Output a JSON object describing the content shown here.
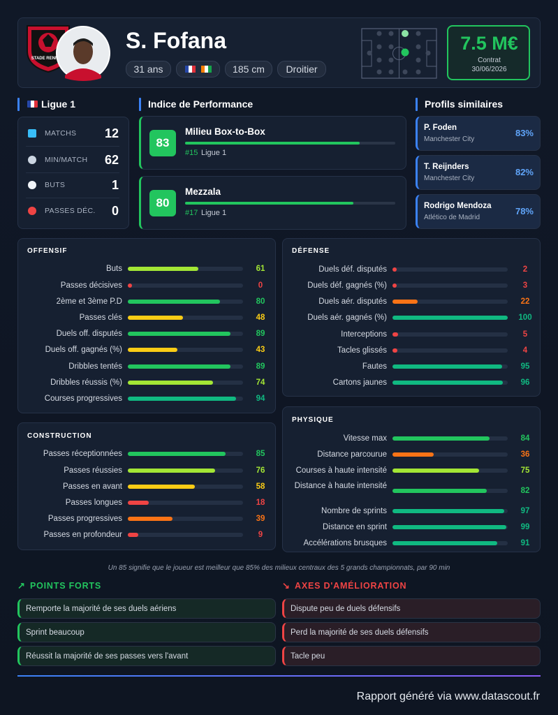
{
  "header": {
    "club": "STADE RENNAIS",
    "name": "S. Fofana",
    "age": "31 ans",
    "height": "185 cm",
    "foot": "Droitier",
    "market_value": "7.5 M€",
    "contract_label": "Contrat",
    "contract_end": "30/06/2026"
  },
  "league": {
    "title": "Ligue 1",
    "stats": [
      {
        "label": "MATCHS",
        "value": 12
      },
      {
        "label": "MIN/MATCH",
        "value": 62
      },
      {
        "label": "BUTS",
        "value": 1
      },
      {
        "label": "PASSES DÉC.",
        "value": 0
      }
    ]
  },
  "performance": {
    "title": "Indice de Performance",
    "roles": [
      {
        "score": 83,
        "name": "Milieu Box-to-Box",
        "rank": "#15",
        "league": "Ligue 1"
      },
      {
        "score": 80,
        "name": "Mezzala",
        "rank": "#17",
        "league": "Ligue 1"
      }
    ]
  },
  "similar": {
    "title": "Profils similaires",
    "players": [
      {
        "name": "P. Foden",
        "club": "Manchester City",
        "similarity": "83%"
      },
      {
        "name": "T. Reijnders",
        "club": "Manchester City",
        "similarity": "82%"
      },
      {
        "name": "Rodrigo Mendoza",
        "club": "Atlético de Madrid",
        "similarity": "78%"
      }
    ]
  },
  "sections": [
    {
      "title": "OFFENSIF",
      "rows": [
        {
          "label": "Buts",
          "value": 61
        },
        {
          "label": "Passes décisives",
          "value": 0
        },
        {
          "label": "2ème et 3ème P.D",
          "value": 80
        },
        {
          "label": "Passes clés",
          "value": 48
        },
        {
          "label": "Duels off. disputés",
          "value": 89
        },
        {
          "label": "Duels off. gagnés (%)",
          "value": 43
        },
        {
          "label": "Dribbles tentés",
          "value": 89
        },
        {
          "label": "Dribbles réussis (%)",
          "value": 74
        },
        {
          "label": "Courses progressives",
          "value": 94
        }
      ]
    },
    {
      "title": "DÉFENSE",
      "rows": [
        {
          "label": "Duels déf. disputés",
          "value": 2
        },
        {
          "label": "Duels déf. gagnés (%)",
          "value": 3
        },
        {
          "label": "Duels aér. disputés",
          "value": 22
        },
        {
          "label": "Duels aér. gagnés (%)",
          "value": 100
        },
        {
          "label": "Interceptions",
          "value": 5
        },
        {
          "label": "Tacles glissés",
          "value": 4
        },
        {
          "label": "Fautes",
          "value": 95
        },
        {
          "label": "Cartons jaunes",
          "value": 96
        }
      ]
    },
    {
      "title": "CONSTRUCTION",
      "rows": [
        {
          "label": "Passes réceptionnées",
          "value": 85
        },
        {
          "label": "Passes réussies",
          "value": 76
        },
        {
          "label": "Passes en avant",
          "value": 58
        },
        {
          "label": "Passes longues",
          "value": 18
        },
        {
          "label": "Passes progressives",
          "value": 39
        },
        {
          "label": "Passes en profondeur",
          "value": 9
        }
      ]
    },
    {
      "title": "PHYSIQUE",
      "rows": [
        {
          "label": "Vitesse max",
          "value": 84
        },
        {
          "label": "Distance parcourue",
          "value": 36
        },
        {
          "label": "Courses à haute intensité",
          "value": 75
        },
        {
          "label": "Distance à haute intensité",
          "value": 82
        },
        {
          "label": "Nombre de sprints",
          "value": 97
        },
        {
          "label": "Distance en sprint",
          "value": 99
        },
        {
          "label": "Accélérations brusques",
          "value": 91
        }
      ]
    }
  ],
  "note": "Un 85 signifie que le joueur est meilleur que 85% des milieux centraux des 5 grands championnats, par 90 min",
  "strengths": {
    "title": "POINTS FORTS",
    "items": [
      "Remporte la majorité de ses duels aériens",
      "Sprint beaucoup",
      "Réussit la majorité de ses passes vers l'avant"
    ]
  },
  "improvements": {
    "title": "AXES D'AMÉLIORATION",
    "items": [
      "Dispute peu de duels défensifs",
      "Perd la majorité de ses duels défensifs",
      "Tacle peu"
    ]
  },
  "footer": "Rapport généré via www.datascout.fr"
}
